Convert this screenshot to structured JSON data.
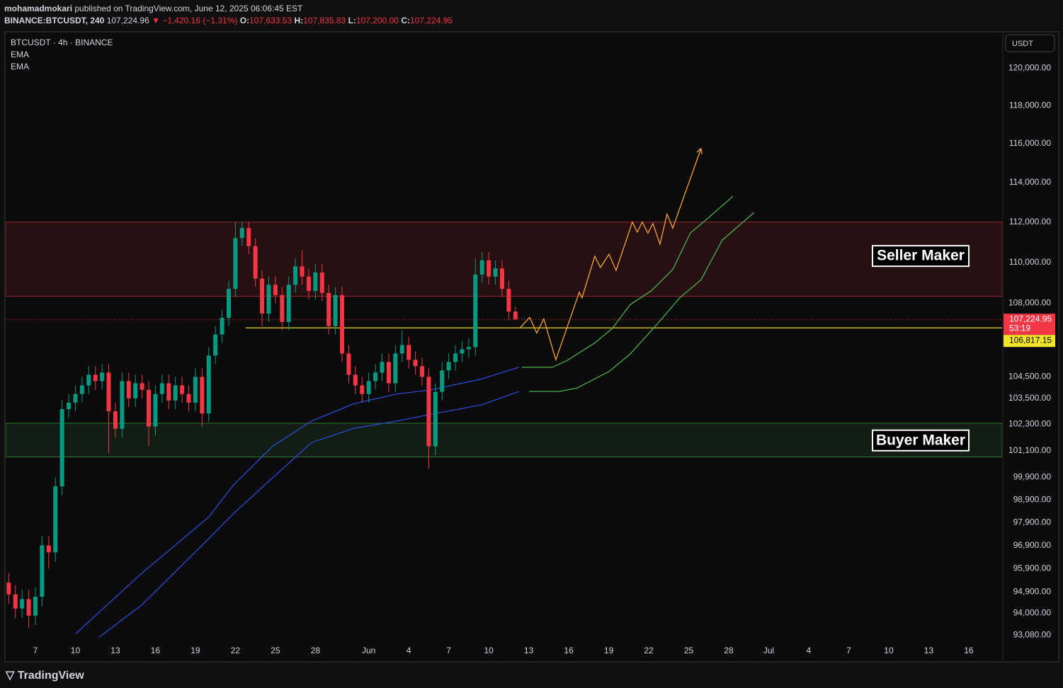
{
  "header": {
    "author": "mohamadmokari",
    "published": "published on TradingView.com, June 12, 2025 06:06:45 EST",
    "symbol": "BINANCE:BTCUSDT, 240",
    "last": "107,224.96",
    "change": "▼ −1,420.16 (−1.31%)",
    "ohlc": [
      {
        "label": "O:",
        "value": "107,633.53"
      },
      {
        "label": "H:",
        "value": "107,835.83"
      },
      {
        "label": "L:",
        "value": "107,200.00"
      },
      {
        "label": "C:",
        "value": "107,224.95"
      }
    ]
  },
  "footer": {
    "logo": "TradingView"
  },
  "chart_data": {
    "type": "candlestick",
    "legend": [
      "BTCUSDT · 4h · BINANCE",
      "EMA",
      "EMA"
    ],
    "axis_unit": "USDT",
    "log_scale": true,
    "grid": false,
    "up_color": "#089981",
    "down_color": "#f23645",
    "xlim": [
      4.77,
      79.5
    ],
    "ylim": [
      91980,
      121960
    ],
    "xticks": [
      {
        "value": 7,
        "label": "7"
      },
      {
        "value": 10,
        "label": "10"
      },
      {
        "value": 13,
        "label": "13"
      },
      {
        "value": 16,
        "label": "16"
      },
      {
        "value": 19,
        "label": "19"
      },
      {
        "value": 22,
        "label": "22"
      },
      {
        "value": 25,
        "label": "25"
      },
      {
        "value": 28,
        "label": "28"
      },
      {
        "value": 32,
        "label": "Jun"
      },
      {
        "value": 35,
        "label": "4"
      },
      {
        "value": 38,
        "label": "7"
      },
      {
        "value": 41,
        "label": "10"
      },
      {
        "value": 44,
        "label": "13"
      },
      {
        "value": 47,
        "label": "16"
      },
      {
        "value": 50,
        "label": "19"
      },
      {
        "value": 53,
        "label": "22"
      },
      {
        "value": 56,
        "label": "25"
      },
      {
        "value": 59,
        "label": "28"
      },
      {
        "value": 62,
        "label": "Jul"
      },
      {
        "value": 65,
        "label": "4"
      },
      {
        "value": 68,
        "label": "7"
      },
      {
        "value": 71,
        "label": "10"
      },
      {
        "value": 74,
        "label": "13"
      },
      {
        "value": 77,
        "label": "16"
      }
    ],
    "yticks": [
      {
        "value": 120000,
        "label": "120,000.00"
      },
      {
        "value": 118000,
        "label": "118,000.00"
      },
      {
        "value": 116000,
        "label": "116,000.00"
      },
      {
        "value": 114000,
        "label": "114,000.00"
      },
      {
        "value": 112000,
        "label": "112,000.00"
      },
      {
        "value": 110000,
        "label": "110,000.00"
      },
      {
        "value": 108000,
        "label": "108,000.00"
      },
      {
        "value": 104500,
        "label": "104,500.00"
      },
      {
        "value": 103500,
        "label": "103,500.00"
      },
      {
        "value": 102300,
        "label": "102,300.00"
      },
      {
        "value": 101100,
        "label": "101,100.00"
      },
      {
        "value": 99900,
        "label": "99,900.00"
      },
      {
        "value": 98900,
        "label": "98,900.00"
      },
      {
        "value": 97900,
        "label": "97,900.00"
      },
      {
        "value": 96900,
        "label": "96,900.00"
      },
      {
        "value": 95900,
        "label": "95,900.00"
      },
      {
        "value": 94900,
        "label": "94,900.00"
      },
      {
        "value": 94000,
        "label": "94,000.00"
      },
      {
        "value": 93080,
        "label": "93,080.00"
      }
    ],
    "x": [
      5,
      5.5,
      6,
      6.5,
      7,
      7.5,
      8,
      8.5,
      9,
      9.5,
      10,
      10.5,
      11,
      11.5,
      12,
      12.5,
      13,
      13.5,
      14,
      14.5,
      15,
      15.5,
      16,
      16.5,
      17,
      17.5,
      18,
      18.5,
      19,
      19.5,
      20,
      20.5,
      21,
      21.5,
      22,
      22.5,
      23,
      23.5,
      24,
      24.5,
      25,
      25.5,
      26,
      26.5,
      27,
      27.5,
      28,
      28.5,
      29,
      29.5,
      30,
      30.5,
      31,
      31.5,
      32,
      32.5,
      33,
      33.5,
      34,
      34.5,
      35,
      35.5,
      36,
      36.5,
      37,
      37.5,
      38,
      38.5,
      39,
      39.5,
      40,
      40.5,
      41,
      41.5,
      42,
      42.5,
      43
    ],
    "open": [
      95300,
      94800,
      94200,
      94600,
      93900,
      94700,
      96900,
      96600,
      99500,
      103000,
      103300,
      103700,
      104100,
      104600,
      104300,
      104700,
      102900,
      102100,
      104300,
      103500,
      104200,
      103900,
      102200,
      103700,
      104200,
      103400,
      104100,
      103700,
      103300,
      104500,
      102800,
      105500,
      106500,
      107300,
      108700,
      111200,
      111700,
      110800,
      109200,
      107500,
      108900,
      108400,
      107100,
      108900,
      109800,
      109300,
      108600,
      109500,
      108500,
      106900,
      108400,
      105600,
      104600,
      104100,
      103700,
      104300,
      104700,
      105200,
      104200,
      105600,
      106000,
      105300,
      105000,
      104500,
      101300,
      103800,
      104800,
      105200,
      105600,
      105800,
      105900,
      109400,
      110100,
      109300,
      109700,
      108700,
      107600
    ],
    "high": [
      95700,
      95200,
      95000,
      95000,
      95100,
      97300,
      97300,
      99900,
      103400,
      103700,
      104100,
      104500,
      105000,
      105000,
      105100,
      105100,
      103300,
      104700,
      104700,
      104600,
      104600,
      104300,
      104100,
      104600,
      104600,
      104500,
      104500,
      104100,
      104900,
      104900,
      105900,
      106900,
      107700,
      109100,
      112000,
      112000,
      112000,
      111200,
      109600,
      109300,
      109300,
      108800,
      109300,
      110200,
      110600,
      109700,
      109900,
      109900,
      108900,
      108800,
      108800,
      106000,
      105000,
      104500,
      104700,
      105100,
      105600,
      105600,
      106000,
      106700,
      106400,
      105700,
      105400,
      104900,
      104200,
      105200,
      105600,
      106000,
      106200,
      106300,
      110200,
      110500,
      110500,
      110100,
      110100,
      109100,
      107840
    ],
    "low": [
      94400,
      93800,
      93800,
      93400,
      93500,
      94300,
      95900,
      96200,
      99100,
      102600,
      102900,
      103300,
      103700,
      103900,
      103900,
      101000,
      101700,
      101700,
      103100,
      103100,
      103500,
      101300,
      101800,
      103300,
      103000,
      103000,
      103300,
      102900,
      102900,
      102200,
      102400,
      105100,
      106100,
      106900,
      108300,
      110800,
      110400,
      108800,
      106900,
      107100,
      108000,
      106700,
      106700,
      108500,
      108900,
      108200,
      108200,
      108100,
      106500,
      106500,
      105200,
      104200,
      103700,
      103300,
      103300,
      103900,
      104300,
      103800,
      103800,
      105200,
      104900,
      104600,
      104100,
      100300,
      100900,
      103400,
      104400,
      104800,
      105200,
      105400,
      105500,
      109000,
      108900,
      108900,
      108300,
      107200,
      107200
    ],
    "close": [
      94800,
      94200,
      94600,
      93900,
      94700,
      96900,
      96600,
      99500,
      103000,
      103300,
      103700,
      104100,
      104600,
      104300,
      104700,
      102900,
      102100,
      104300,
      103500,
      104200,
      103900,
      102200,
      103700,
      104200,
      103400,
      104100,
      103700,
      103300,
      104500,
      102800,
      105500,
      106500,
      107300,
      108700,
      111200,
      111700,
      110800,
      109200,
      107500,
      108900,
      108400,
      107100,
      108900,
      109800,
      109300,
      108600,
      109500,
      108500,
      106900,
      108400,
      105600,
      104600,
      104100,
      103700,
      104300,
      104700,
      105200,
      104200,
      105600,
      106000,
      105300,
      105000,
      104500,
      101300,
      103800,
      104800,
      105200,
      105600,
      105800,
      105900,
      109400,
      110100,
      109300,
      109700,
      108700,
      107600,
      107225
    ],
    "ema": [
      {
        "color": "#2f4fe0",
        "x": [
          10.03,
          14.97,
          20.01,
          21.87,
          24.79,
          27.71,
          30.9,
          34.08,
          36.74,
          40.46,
          43.27
        ],
        "values": [
          93150,
          95700,
          98150,
          99570,
          101300,
          102450,
          103250,
          103700,
          103900,
          104400,
          104950
        ]
      },
      {
        "color": "#2f4fe0",
        "x": [
          11.78,
          14.97,
          20.01,
          21.87,
          24.79,
          27.71,
          30.9,
          34.08,
          36.74,
          40.46,
          43.27
        ],
        "values": [
          93000,
          94350,
          97200,
          98300,
          99880,
          101470,
          102120,
          102450,
          102770,
          103200,
          103820
        ]
      }
    ],
    "drawings": [
      {
        "color": "#f7a43a",
        "arrow": true,
        "x": [
          43.38,
          44.07,
          44.6,
          45.13,
          46.03,
          47.79,
          48.0,
          48.95,
          49.38,
          50.02,
          50.55,
          51.77,
          52.14,
          52.51,
          52.94,
          53.31,
          53.84,
          54.37,
          54.8,
          56.92
        ],
        "values": [
          106844,
          107320,
          106570,
          107250,
          105300,
          108540,
          108270,
          110300,
          109750,
          110400,
          109600,
          112000,
          111500,
          112000,
          111450,
          111930,
          110900,
          112400,
          111700,
          115750
        ]
      },
      {
        "color": "#4caf50",
        "arrow": false,
        "x": [
          43.48,
          45.77,
          46.83,
          48.95,
          50.28,
          51.6,
          53.2,
          54.8,
          56.12,
          57.45,
          59.31
        ],
        "values": [
          104950,
          104950,
          105250,
          106100,
          106800,
          107930,
          108610,
          109650,
          111450,
          112200,
          113300
        ]
      },
      {
        "color": "#4caf50",
        "arrow": false,
        "x": [
          44.02,
          46.3,
          47.63,
          50.02,
          51.6,
          53.47,
          55.33,
          56.92,
          58.51,
          60.9
        ],
        "values": [
          103820,
          103820,
          103980,
          104750,
          105570,
          106880,
          108270,
          109140,
          111100,
          112480
        ]
      }
    ],
    "zones": [
      {
        "label": "Seller Maker",
        "low": 108340,
        "high": 112000,
        "color": "#f23645"
      },
      {
        "label": "Buyer Maker",
        "low": 100820,
        "high": 102350,
        "color": "#4caf50"
      }
    ],
    "level": {
      "value": 106817.15,
      "label": "106,817.15",
      "start_x": 22.77,
      "color": "#c9b52a"
    },
    "current": {
      "value": 107224.95,
      "label": "107,224.95",
      "countdown": "53:19",
      "color": "#f23645"
    }
  }
}
